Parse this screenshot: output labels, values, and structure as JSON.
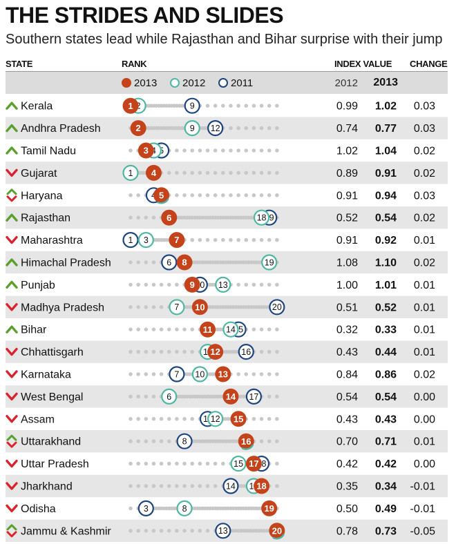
{
  "header": {
    "title": "THE STRIDES AND SLIDES",
    "subtitle": "Southern states lead while Rajasthan and Bihar surprise with their jump",
    "col_state": "STATE",
    "col_rank": "RANK",
    "col_index": "INDEX VALUE",
    "col_change": "CHANGE"
  },
  "legend": {
    "y2013": "2013",
    "y2012": "2012",
    "y2011": "2011"
  },
  "colors": {
    "c2013": "#c4431b",
    "c2012": "#4db7a2",
    "c2011": "#1d4480",
    "up": "#5aa02c",
    "down": "#d9232e",
    "dot": "#c8c8c8",
    "band": "#e6e6e6"
  },
  "chart_data": {
    "type": "table",
    "title": "THE STRIDES AND SLIDES",
    "subtitle": "Southern states lead while Rajasthan and Bihar surprise with their jump",
    "columns": [
      "STATE",
      "RANK",
      "INDEX VALUE 2012",
      "INDEX VALUE 2013",
      "CHANGE"
    ],
    "index_years": [
      "2012",
      "2013"
    ],
    "rank_range": [
      1,
      20
    ],
    "rows": [
      {
        "state": "Kerala",
        "trend": "up",
        "rank2013": 1,
        "rank2012": 2,
        "rank2011": 9,
        "idx2012": "0.99",
        "idx2013": "1.02",
        "change": "0.03"
      },
      {
        "state": "Andhra Pradesh",
        "trend": "up",
        "rank2013": 2,
        "rank2012": 9,
        "rank2011": 12,
        "idx2012": "0.74",
        "idx2013": "0.77",
        "change": "0.03"
      },
      {
        "state": "Tamil Nadu",
        "trend": "up",
        "rank2013": 3,
        "rank2012": 4,
        "rank2011": 5,
        "idx2012": "1.02",
        "idx2013": "1.04",
        "change": "0.02"
      },
      {
        "state": "Gujarat",
        "trend": "down",
        "rank2013": 4,
        "rank2012": 1,
        "rank2011": 1,
        "idx2012": "0.89",
        "idx2013": "0.91",
        "change": "0.02"
      },
      {
        "state": "Haryana",
        "trend": "mixed",
        "rank2013": 5,
        "rank2012": 5,
        "rank2011": 4,
        "idx2012": "0.91",
        "idx2013": "0.94",
        "change": "0.03"
      },
      {
        "state": "Rajasthan",
        "trend": "up",
        "rank2013": 6,
        "rank2012": 18,
        "rank2011": 19,
        "idx2012": "0.52",
        "idx2013": "0.54",
        "change": "0.02"
      },
      {
        "state": "Maharashtra",
        "trend": "down",
        "rank2013": 7,
        "rank2012": 3,
        "rank2011": 1,
        "idx2012": "0.91",
        "idx2013": "0.92",
        "change": "0.01"
      },
      {
        "state": "Himachal Pradesh",
        "trend": "up",
        "rank2013": 8,
        "rank2012": 19,
        "rank2011": 6,
        "idx2012": "1.08",
        "idx2013": "1.10",
        "change": "0.02"
      },
      {
        "state": "Punjab",
        "trend": "up",
        "rank2013": 9,
        "rank2012": 13,
        "rank2011": 10,
        "idx2012": "1.00",
        "idx2013": "1.01",
        "change": "0.01"
      },
      {
        "state": "Madhya Pradesh",
        "trend": "down",
        "rank2013": 10,
        "rank2012": 7,
        "rank2011": 20,
        "idx2012": "0.51",
        "idx2013": "0.52",
        "change": "0.01"
      },
      {
        "state": "Bihar",
        "trend": "up",
        "rank2013": 11,
        "rank2012": 14,
        "rank2011": 15,
        "idx2012": "0.32",
        "idx2013": "0.33",
        "change": "0.01"
      },
      {
        "state": "Chhattisgarh",
        "trend": "down",
        "rank2013": 12,
        "rank2012": 11,
        "rank2011": 16,
        "idx2012": "0.43",
        "idx2013": "0.44",
        "change": "0.01"
      },
      {
        "state": "Karnataka",
        "trend": "down",
        "rank2013": 13,
        "rank2012": 10,
        "rank2011": 7,
        "idx2012": "0.84",
        "idx2013": "0.86",
        "change": "0.02"
      },
      {
        "state": "West Bengal",
        "trend": "down",
        "rank2013": 14,
        "rank2012": 6,
        "rank2011": 17,
        "idx2012": "0.54",
        "idx2013": "0.54",
        "change": "0.00"
      },
      {
        "state": "Assam",
        "trend": "down",
        "rank2013": 15,
        "rank2012": 12,
        "rank2011": 11,
        "idx2012": "0.43",
        "idx2013": "0.43",
        "change": "0.00"
      },
      {
        "state": "Uttarakhand",
        "trend": "mixed",
        "rank2013": 16,
        "rank2012": 16,
        "rank2011": 8,
        "idx2012": "0.70",
        "idx2013": "0.71",
        "change": "0.01"
      },
      {
        "state": "Uttar Pradesh",
        "trend": "down",
        "rank2013": 17,
        "rank2012": 15,
        "rank2011": 18,
        "idx2012": "0.42",
        "idx2013": "0.42",
        "change": "0.00"
      },
      {
        "state": "Jharkhand",
        "trend": "down",
        "rank2013": 18,
        "rank2012": 17,
        "rank2011": 14,
        "idx2012": "0.35",
        "idx2013": "0.34",
        "change": "-0.01"
      },
      {
        "state": "Odisha",
        "trend": "down",
        "rank2013": 19,
        "rank2012": 8,
        "rank2011": 3,
        "idx2012": "0.50",
        "idx2013": "0.49",
        "change": "-0.01"
      },
      {
        "state": "Jammu & Kashmir",
        "trend": "mixed",
        "rank2013": 20,
        "rank2012": 20,
        "rank2011": 13,
        "idx2012": "0.78",
        "idx2013": "0.73",
        "change": "-0.05"
      }
    ]
  }
}
